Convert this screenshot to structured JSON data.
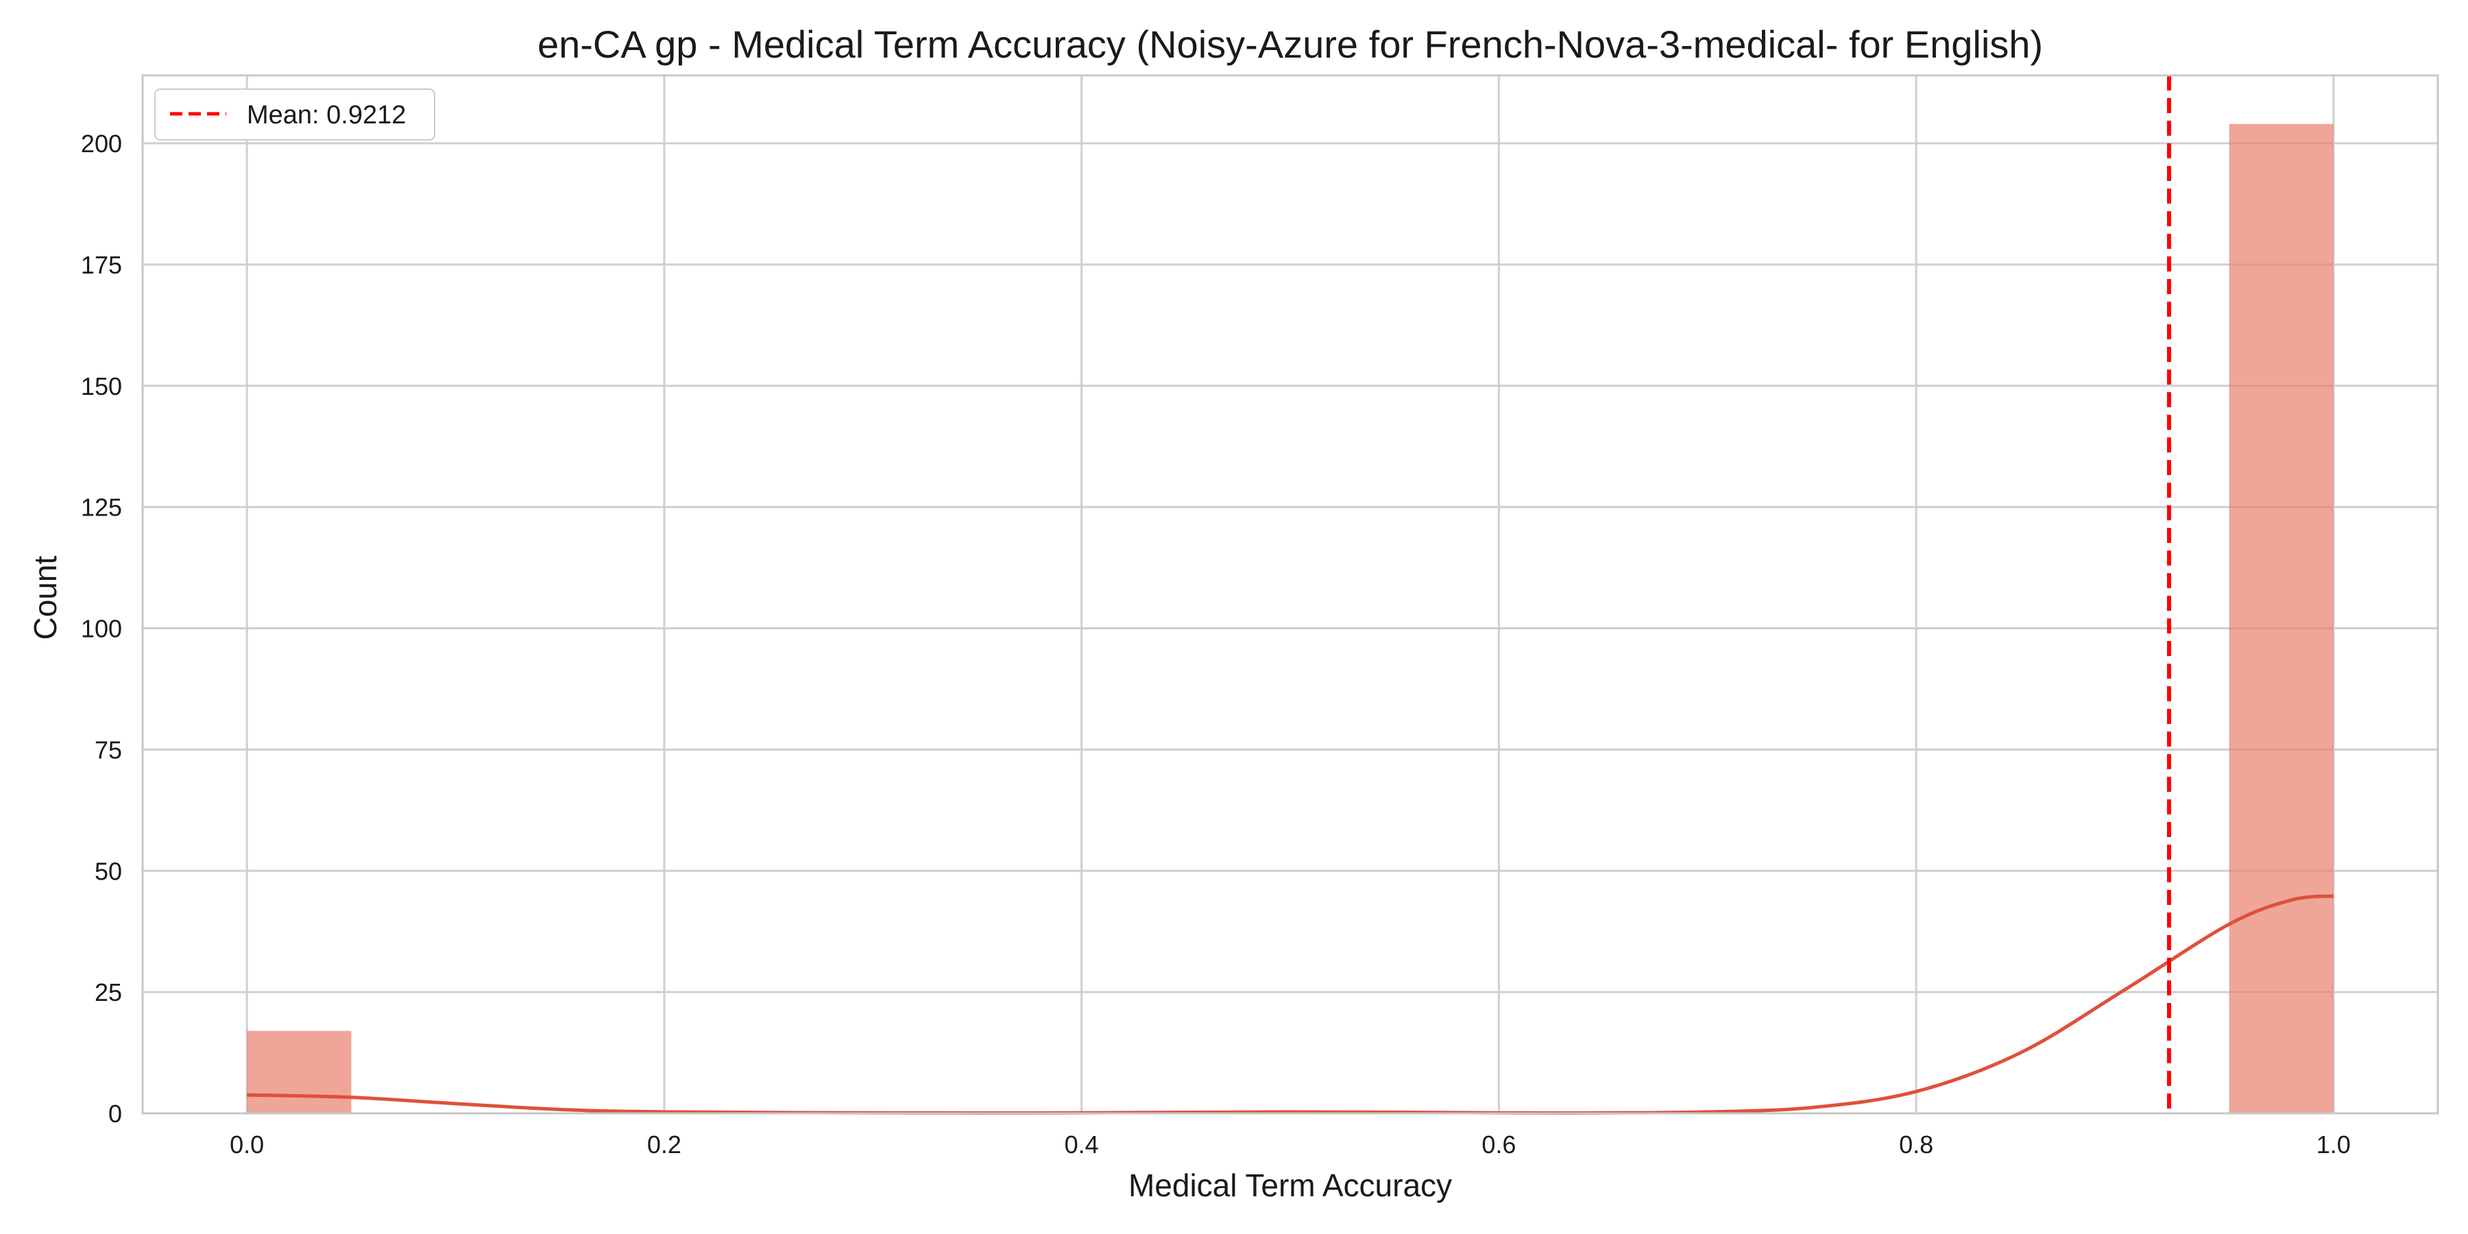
{
  "chart_data": {
    "type": "histogram",
    "title": "en-CA gp - Medical Term Accuracy (Noisy-Azure for French-Nova-3-medical- for English)",
    "xlabel": "Medical Term Accuracy",
    "ylabel": "Count",
    "xlim": [
      -0.05,
      1.05
    ],
    "ylim": [
      0,
      214
    ],
    "xticks": [
      0.0,
      0.2,
      0.4,
      0.6,
      0.8,
      1.0
    ],
    "xtick_labels": [
      "0.0",
      "0.2",
      "0.4",
      "0.6",
      "0.8",
      "1.0"
    ],
    "yticks": [
      0,
      25,
      50,
      75,
      100,
      125,
      150,
      175,
      200
    ],
    "ytick_labels": [
      "0",
      "25",
      "50",
      "75",
      "100",
      "125",
      "150",
      "175",
      "200"
    ],
    "grid": true,
    "bins": [
      {
        "x0": 0.0,
        "x1": 0.05,
        "count": 17
      },
      {
        "x0": 0.95,
        "x1": 1.0,
        "count": 204
      }
    ],
    "kde": {
      "x": [
        0.0,
        0.05,
        0.1,
        0.15,
        0.2,
        0.3,
        0.4,
        0.5,
        0.6,
        0.65,
        0.7,
        0.75,
        0.8,
        0.85,
        0.9,
        0.95,
        0.98,
        1.0
      ],
      "y": [
        3.8,
        3.3,
        2.0,
        0.8,
        0.3,
        0.1,
        0.1,
        0.3,
        0.1,
        0.1,
        0.3,
        1.2,
        4.5,
        12.5,
        25.5,
        39.0,
        44.0,
        44.8
      ]
    },
    "mean": {
      "value": 0.9212,
      "label": "Mean: 0.9212"
    },
    "legend": {
      "placement": "top-left"
    },
    "colors": {
      "bar": "#e8806e",
      "kde": "#e0503a",
      "mean": "#ff0000",
      "grid": "#cfcfcf",
      "frame": "#c8c8c8"
    }
  }
}
